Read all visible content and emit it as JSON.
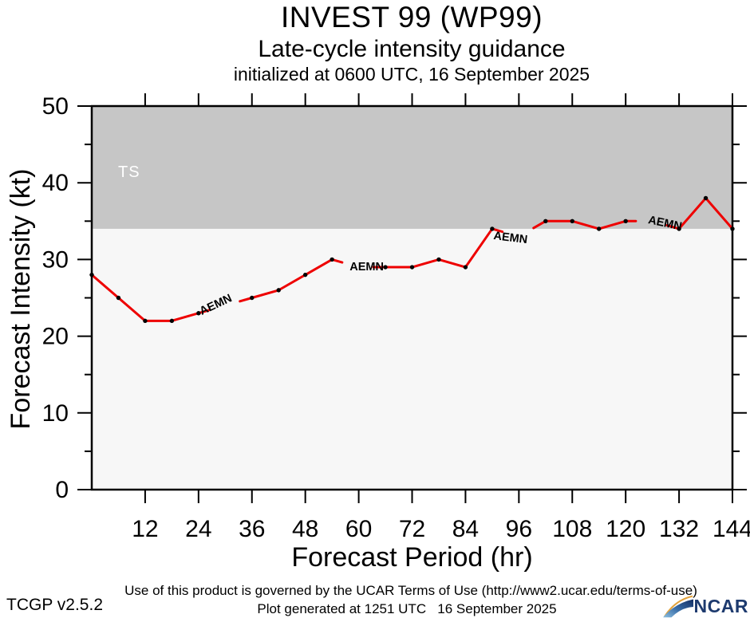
{
  "header": {
    "title": "INVEST 99 (WP99)",
    "subtitle": "Late-cycle intensity guidance",
    "init_line": "initialized at 0600 UTC, 16 September 2025"
  },
  "footer": {
    "terms": "Use of this product is governed by the UCAR Terms of Use (http://www2.ucar.edu/terms-of-use)",
    "version": "TCGP v2.5.2",
    "generated": "Plot generated at 1251 UTC   16 September 2025",
    "logo_text": "NCAR"
  },
  "chart_data": {
    "type": "line",
    "title": "INVEST 99 (WP99)",
    "subtitle": "Late-cycle intensity guidance",
    "init_time": "initialized at 0600 UTC, 16 September 2025",
    "xlabel": "Forecast Period (hr)",
    "ylabel": "Forecast Intensity (kt)",
    "xlim": [
      0,
      144
    ],
    "ylim": [
      0,
      50
    ],
    "grid": false,
    "x_major_ticks": [
      12,
      24,
      36,
      48,
      60,
      72,
      84,
      96,
      108,
      120,
      132,
      144
    ],
    "y_major_ticks": [
      0,
      10,
      20,
      30,
      40,
      50
    ],
    "y_minor_ticks": [
      5,
      15,
      25,
      35,
      45
    ],
    "plot_bg": "#f7f7f7",
    "threshold_region": {
      "label": "TS",
      "from": 34,
      "to": 50,
      "color": "#c6c6c6",
      "label_color": "#ffffff"
    },
    "series": [
      {
        "name": "AEMN",
        "color": "#ee0000",
        "marker_color": "#000000",
        "x": [
          0,
          6,
          12,
          18,
          24,
          30,
          36,
          42,
          48,
          54,
          60,
          66,
          72,
          78,
          84,
          90,
          96,
          102,
          108,
          114,
          120,
          126,
          132,
          138,
          144
        ],
        "values": [
          28,
          25,
          22,
          22,
          23,
          24,
          25,
          26,
          28,
          30,
          29,
          29,
          29,
          30,
          29,
          34,
          33,
          35,
          35,
          34,
          35,
          35,
          34,
          38,
          34
        ],
        "label_hours": [
          30,
          60,
          96,
          126
        ],
        "label_rotations": [
          -25,
          0,
          7,
          12
        ],
        "label_offsets": [
          [
            -10,
            -2
          ],
          [
            10,
            -1
          ],
          [
            -11,
            1
          ],
          [
            15,
            2
          ]
        ]
      }
    ]
  }
}
